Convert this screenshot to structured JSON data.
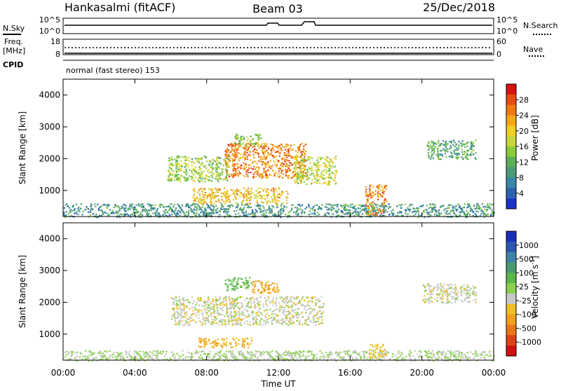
{
  "header": {
    "station": "Hankasalmi (fitACF)",
    "beam": "Beam 03",
    "date": "25/Dec/2018"
  },
  "status_panels": {
    "nsky_label": "N.Sky",
    "nsky_ticks": [
      "10^5",
      "10^0"
    ],
    "nsearch_label": "N.Search",
    "nsearch_ticks": [
      "10^5",
      "10^0"
    ],
    "freq_label_1": "Freq.",
    "freq_label_2": "[MHz]",
    "freq_ticks": [
      "18",
      "8"
    ],
    "nave_label": "Nave",
    "nave_ticks": [
      "60",
      "0"
    ],
    "cpid_label": "CPID",
    "cpid_text": "normal (fast stereo) 153"
  },
  "colors": {
    "power_scale": [
      "#1a32c8",
      "#2a62b0",
      "#3a86a8",
      "#4a9a7a",
      "#5cb05a",
      "#8ccc3c",
      "#c8d838",
      "#f0d020",
      "#f4a814",
      "#f07a10",
      "#e84a10",
      "#d81010"
    ],
    "velocity_scale": [
      "#1a2fb8",
      "#2a56b0",
      "#3e82a8",
      "#4a9a70",
      "#5ab84a",
      "#8cd050",
      "#c8c8c8",
      "#f0c020",
      "#f0a018",
      "#e87818",
      "#e04018",
      "#d01010"
    ]
  },
  "chart_data": [
    {
      "type": "heatmap",
      "panel": "power",
      "ylabel": "Slant Range [km]",
      "yticks": [
        "4000",
        "3000",
        "2000",
        "1000"
      ],
      "ylim": [
        180,
        4500
      ],
      "xlim_hours": [
        0,
        24
      ],
      "colorbar_title": "Power [dB]",
      "colorbar_ticks": [
        "28",
        "24",
        "20",
        "16",
        "12",
        "8",
        "4"
      ],
      "colorbar_range": [
        0,
        30
      ],
      "features": [
        {
          "t": [
            9.0,
            13.5
          ],
          "r": [
            1400,
            2500
          ],
          "value": 24
        },
        {
          "t": [
            5.8,
            9.2
          ],
          "r": [
            1300,
            2100
          ],
          "value": 14
        },
        {
          "t": [
            12.8,
            15.2
          ],
          "r": [
            1200,
            2100
          ],
          "value": 16
        },
        {
          "t": [
            7.2,
            12.5
          ],
          "r": [
            600,
            1100
          ],
          "value": 20
        },
        {
          "t": [
            9.5,
            11.0
          ],
          "r": [
            2400,
            2800
          ],
          "value": 14
        },
        {
          "t": [
            16.8,
            18.0
          ],
          "r": [
            250,
            1200
          ],
          "value": 24
        },
        {
          "t": [
            20.2,
            23.0
          ],
          "r": [
            2000,
            2600
          ],
          "value": 10
        },
        {
          "t": [
            0.0,
            24.0
          ],
          "r": [
            180,
            600
          ],
          "value": 8
        }
      ]
    },
    {
      "type": "heatmap",
      "panel": "velocity",
      "ylabel": "Slant Range [km]",
      "yticks": [
        "4000",
        "3000",
        "2000",
        "1000"
      ],
      "ylim": [
        180,
        4500
      ],
      "xlim_hours": [
        0,
        24
      ],
      "xlabel": "Time UT",
      "xticks": [
        "00:00",
        "04:00",
        "08:00",
        "12:00",
        "16:00",
        "20:00",
        "00:00"
      ],
      "colorbar_title": "Velocity [m s",
      "colorbar_exponent": "-1",
      "colorbar_ticks": [
        "1000",
        "500",
        "100",
        "25",
        "-25",
        "-100",
        "-500",
        "-1000"
      ],
      "features": [
        {
          "t": [
            6.0,
            14.5
          ],
          "r": [
            1300,
            2200
          ],
          "value": 0
        },
        {
          "t": [
            9.0,
            10.5
          ],
          "r": [
            2400,
            2800
          ],
          "value": 200
        },
        {
          "t": [
            10.5,
            12.0
          ],
          "r": [
            2300,
            2700
          ],
          "value": -200
        },
        {
          "t": [
            7.5,
            10.5
          ],
          "r": [
            600,
            900
          ],
          "value": -150
        },
        {
          "t": [
            20.0,
            23.0
          ],
          "r": [
            2000,
            2600
          ],
          "value": 0
        },
        {
          "t": [
            0.0,
            24.0
          ],
          "r": [
            180,
            500
          ],
          "value": 50
        },
        {
          "t": [
            17.0,
            18.0
          ],
          "r": [
            250,
            700
          ],
          "value": -100
        }
      ]
    }
  ]
}
